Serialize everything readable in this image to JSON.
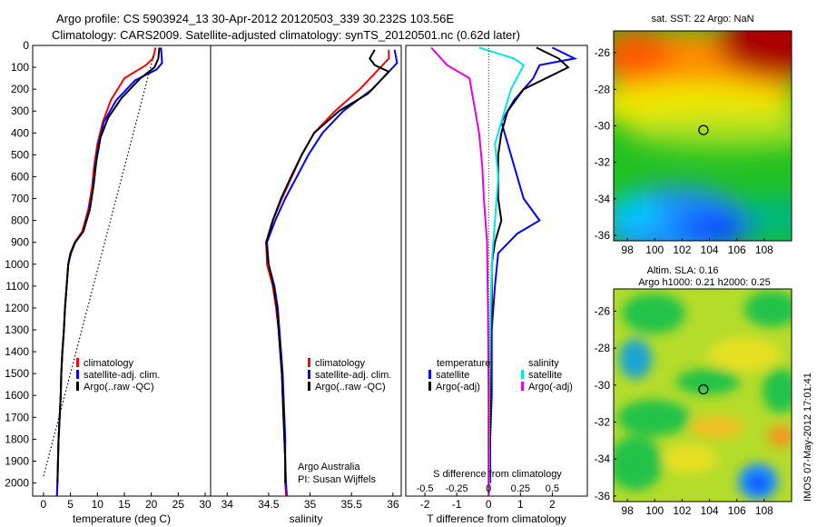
{
  "figure": {
    "title_line1": "Argo profile: CS 5903924_13 30-Apr-2012 20120503_339 30.232S 103.56E",
    "title_line2": "Climatology: CARS2009. Satellite-adjusted climatology: synTS_20120501.nc (0.62d later)",
    "side_stamp": "IMOS 07-May-2012 17:01:41"
  },
  "colors": {
    "red": "#ff0000",
    "blue": "#0000ff",
    "black": "#000000",
    "cyan": "#00e6e6",
    "magenta": "#e600e6"
  },
  "chart_data": [
    {
      "id": "temperature",
      "type": "line",
      "xlabel": "temperature (deg C)",
      "xlim": [
        -2,
        31
      ],
      "xticks": [
        0,
        5,
        10,
        15,
        20,
        25,
        30
      ],
      "ylim": [
        2060,
        0
      ],
      "yticks": [
        0,
        100,
        200,
        300,
        400,
        500,
        600,
        700,
        800,
        900,
        1000,
        1100,
        1200,
        1300,
        1400,
        1500,
        1600,
        1700,
        1800,
        1900,
        2000
      ],
      "legend": [
        "climatology",
        "satellite-adj. clim.",
        "Argo(..raw -QC)"
      ],
      "series": [
        {
          "name": "climatology",
          "color": "red",
          "points": [
            [
              20.8,
              10
            ],
            [
              20.3,
              60
            ],
            [
              19,
              90
            ],
            [
              15,
              150
            ],
            [
              12.5,
              250
            ],
            [
              11,
              350
            ],
            [
              10,
              450
            ],
            [
              9.4,
              550
            ],
            [
              9,
              650
            ],
            [
              8.3,
              750
            ],
            [
              7.2,
              850
            ],
            [
              5.8,
              900
            ],
            [
              5,
              950
            ],
            [
              4.6,
              1000
            ],
            [
              4.3,
              1100
            ],
            [
              4,
              1200
            ],
            [
              3.8,
              1300
            ],
            [
              3.5,
              1400
            ],
            [
              3.3,
              1500
            ],
            [
              3.2,
              1600
            ],
            [
              3,
              1700
            ],
            [
              2.8,
              1800
            ],
            [
              2.7,
              1900
            ],
            [
              2.6,
              2000
            ],
            [
              2.5,
              2060
            ]
          ]
        },
        {
          "name": "satellite-adj. clim.",
          "color": "blue",
          "points": [
            [
              21.8,
              10
            ],
            [
              22,
              80
            ],
            [
              21,
              110
            ],
            [
              17,
              160
            ],
            [
              13.5,
              250
            ],
            [
              11.2,
              350
            ],
            [
              10.2,
              450
            ],
            [
              9.6,
              550
            ],
            [
              9.2,
              650
            ],
            [
              8.5,
              750
            ],
            [
              7.4,
              850
            ],
            [
              5.9,
              900
            ],
            [
              5.1,
              950
            ],
            [
              4.6,
              1000
            ],
            [
              4.3,
              1100
            ],
            [
              4,
              1200
            ],
            [
              3.8,
              1300
            ],
            [
              3.5,
              1400
            ],
            [
              3.3,
              1500
            ],
            [
              3.2,
              1600
            ],
            [
              3,
              1700
            ],
            [
              2.8,
              1800
            ],
            [
              2.7,
              1900
            ],
            [
              2.6,
              2000
            ],
            [
              2.5,
              2060
            ]
          ]
        },
        {
          "name": "Argo(..raw -QC)",
          "color": "black",
          "points": [
            [
              21.5,
              10
            ],
            [
              21.3,
              60
            ],
            [
              20.6,
              100
            ],
            [
              18,
              150
            ],
            [
              14.5,
              240
            ],
            [
              12,
              330
            ],
            [
              10.6,
              420
            ],
            [
              9.8,
              530
            ],
            [
              9.3,
              640
            ],
            [
              8.6,
              750
            ],
            [
              7.4,
              850
            ],
            [
              5.9,
              900
            ],
            [
              5,
              950
            ],
            [
              4.6,
              1000
            ],
            [
              4.3,
              1100
            ],
            [
              4,
              1200
            ],
            [
              3.8,
              1300
            ],
            [
              3.5,
              1400
            ],
            [
              3.3,
              1500
            ],
            [
              3.2,
              1600
            ],
            [
              3,
              1700
            ],
            [
              2.8,
              1800
            ],
            [
              2.7,
              1900
            ],
            [
              2.6,
              2000
            ]
          ]
        },
        {
          "name": "",
          "color": "black",
          "style": "dotted",
          "points": [
            [
              20.4,
              50
            ],
            [
              0,
              1970
            ]
          ]
        }
      ]
    },
    {
      "id": "salinity",
      "type": "line",
      "xlabel": "salinity",
      "xlim": [
        33.8,
        36.1
      ],
      "xticks": [
        34,
        34.5,
        35,
        35.5,
        36
      ],
      "ylim": [
        2060,
        0
      ],
      "legend": [
        "climatology",
        "satellite-adj. clim.",
        "Argo(..raw -QC)"
      ],
      "annotation": [
        "Argo Australia",
        "PI: Susan Wijffels"
      ],
      "series": [
        {
          "name": "climatology",
          "color": "red",
          "points": [
            [
              35.95,
              20
            ],
            [
              35.95,
              60
            ],
            [
              35.85,
              100
            ],
            [
              35.6,
              200
            ],
            [
              35.3,
              300
            ],
            [
              35.05,
              400
            ],
            [
              34.9,
              500
            ],
            [
              34.78,
              600
            ],
            [
              34.66,
              700
            ],
            [
              34.55,
              800
            ],
            [
              34.47,
              900
            ],
            [
              34.48,
              1000
            ],
            [
              34.55,
              1100
            ],
            [
              34.59,
              1200
            ],
            [
              34.62,
              1300
            ],
            [
              34.64,
              1400
            ],
            [
              34.66,
              1500
            ],
            [
              34.67,
              1600
            ],
            [
              34.68,
              1700
            ],
            [
              34.69,
              1800
            ],
            [
              34.7,
              1900
            ],
            [
              34.7,
              2000
            ],
            [
              34.71,
              2060
            ]
          ]
        },
        {
          "name": "satellite-adj. clim.",
          "color": "blue",
          "points": [
            [
              36.02,
              20
            ],
            [
              36.05,
              80
            ],
            [
              35.95,
              120
            ],
            [
              35.75,
              200
            ],
            [
              35.4,
              300
            ],
            [
              35.15,
              400
            ],
            [
              34.98,
              500
            ],
            [
              34.84,
              600
            ],
            [
              34.7,
              700
            ],
            [
              34.58,
              800
            ],
            [
              34.48,
              900
            ],
            [
              34.5,
              1000
            ],
            [
              34.57,
              1100
            ],
            [
              34.61,
              1200
            ],
            [
              34.63,
              1300
            ],
            [
              34.65,
              1400
            ],
            [
              34.67,
              1500
            ],
            [
              34.68,
              1600
            ],
            [
              34.69,
              1700
            ],
            [
              34.7,
              1800
            ],
            [
              34.7,
              1900
            ],
            [
              34.71,
              2000
            ],
            [
              34.72,
              2060
            ]
          ]
        },
        {
          "name": "Argo(..raw -QC)",
          "color": "black",
          "points": [
            [
              35.78,
              20
            ],
            [
              35.72,
              60
            ],
            [
              35.78,
              90
            ],
            [
              35.95,
              120
            ],
            [
              35.7,
              220
            ],
            [
              35.35,
              300
            ],
            [
              35.05,
              400
            ],
            [
              34.9,
              500
            ],
            [
              34.77,
              600
            ],
            [
              34.65,
              700
            ],
            [
              34.55,
              800
            ],
            [
              34.47,
              900
            ],
            [
              34.5,
              1000
            ],
            [
              34.56,
              1100
            ],
            [
              34.6,
              1200
            ],
            [
              34.62,
              1300
            ],
            [
              34.64,
              1400
            ],
            [
              34.66,
              1500
            ],
            [
              34.67,
              1600
            ],
            [
              34.68,
              1700
            ],
            [
              34.69,
              1800
            ],
            [
              34.7,
              1900
            ],
            [
              34.7,
              2000
            ]
          ]
        }
      ]
    },
    {
      "id": "differences",
      "type": "line",
      "xlabel": "T difference from climatology",
      "xlim": [
        -2.6,
        3.1
      ],
      "xticks": [
        -2,
        -1,
        0,
        1,
        2
      ],
      "secondary_xlabel": "S difference from climatology",
      "secondary_xtick_labels": [
        "-0.5",
        "-0.25",
        "0",
        "0.25",
        "0.5"
      ],
      "secondary_xtick_values": [
        -2,
        -1,
        0,
        1,
        2
      ],
      "ylim": [
        2060,
        0
      ],
      "legend_headers": [
        "temperature",
        "salinity"
      ],
      "legend": [
        "satellite",
        "Argo(-adj)",
        "satellite",
        "Argo(-adj)"
      ],
      "series": [
        {
          "name": "satellite",
          "group": "temperature",
          "color": "blue",
          "points": [
            [
              2,
              10
            ],
            [
              2.7,
              60
            ],
            [
              1.6,
              90
            ],
            [
              1.4,
              150
            ],
            [
              0.8,
              250
            ],
            [
              0.4,
              350
            ],
            [
              0.7,
              500
            ],
            [
              0.9,
              600
            ],
            [
              1.1,
              700
            ],
            [
              1.6,
              800
            ],
            [
              0.9,
              860
            ],
            [
              0.3,
              950
            ],
            [
              0.2,
              1100
            ],
            [
              0.1,
              1300
            ],
            [
              0.1,
              1600
            ],
            [
              0.05,
              1800
            ],
            [
              0.05,
              2000
            ]
          ]
        },
        {
          "name": "Argo(-adj)",
          "group": "temperature",
          "color": "black",
          "points": [
            [
              1.5,
              10
            ],
            [
              2.2,
              60
            ],
            [
              2.5,
              100
            ],
            [
              1.1,
              200
            ],
            [
              0.6,
              300
            ],
            [
              0.4,
              400
            ],
            [
              0.3,
              500
            ],
            [
              0.3,
              600
            ],
            [
              0.3,
              700
            ],
            [
              0.4,
              800
            ],
            [
              0.2,
              900
            ],
            [
              0.1,
              1000
            ],
            [
              0.1,
              1200
            ],
            [
              0.05,
              1500
            ],
            [
              0.05,
              1800
            ],
            [
              0.02,
              2000
            ]
          ]
        },
        {
          "name": "satellite",
          "group": "salinity",
          "color": "cyan",
          "points": [
            [
              -0.3,
              10
            ],
            [
              0.8,
              60
            ],
            [
              1.1,
              90
            ],
            [
              0.7,
              200
            ],
            [
              0.5,
              300
            ],
            [
              0.2,
              450
            ],
            [
              0.3,
              600
            ],
            [
              0.2,
              800
            ],
            [
              0.1,
              1000
            ],
            [
              0.05,
              1300
            ],
            [
              0.02,
              1700
            ],
            [
              0.02,
              2060
            ]
          ]
        },
        {
          "name": "Argo(-adj)",
          "group": "salinity",
          "color": "magenta",
          "points": [
            [
              -1.8,
              10
            ],
            [
              -1.3,
              90
            ],
            [
              -0.6,
              150
            ],
            [
              -0.3,
              400
            ],
            [
              -0.2,
              550
            ],
            [
              -0.15,
              700
            ],
            [
              -0.05,
              900
            ],
            [
              -0.02,
              1200
            ],
            [
              0,
              1600
            ],
            [
              0,
              2060
            ]
          ]
        }
      ]
    }
  ],
  "maps": [
    {
      "id": "sst-map",
      "title": "sat. SST: 22 Argo: NaN",
      "type": "heatmap",
      "xlim": [
        97,
        110
      ],
      "ylim": [
        -36.3,
        -24.8
      ],
      "xticks": [
        98,
        100,
        102,
        104,
        106,
        108
      ],
      "yticks": [
        -26,
        -28,
        -30,
        -32,
        -34,
        -36
      ],
      "marker": [
        103.56,
        -30.232
      ]
    },
    {
      "id": "sla-map",
      "title_line1": "Altim. SLA: 0.16",
      "title_line2": "Argo h1000: 0.21 h2000: 0.25",
      "type": "heatmap",
      "xlim": [
        97,
        110
      ],
      "ylim": [
        -36.3,
        -24.8
      ],
      "xticks": [
        98,
        100,
        102,
        104,
        106,
        108
      ],
      "yticks": [
        -26,
        -28,
        -30,
        -32,
        -34,
        -36
      ],
      "marker": [
        103.56,
        -30.232
      ]
    }
  ]
}
